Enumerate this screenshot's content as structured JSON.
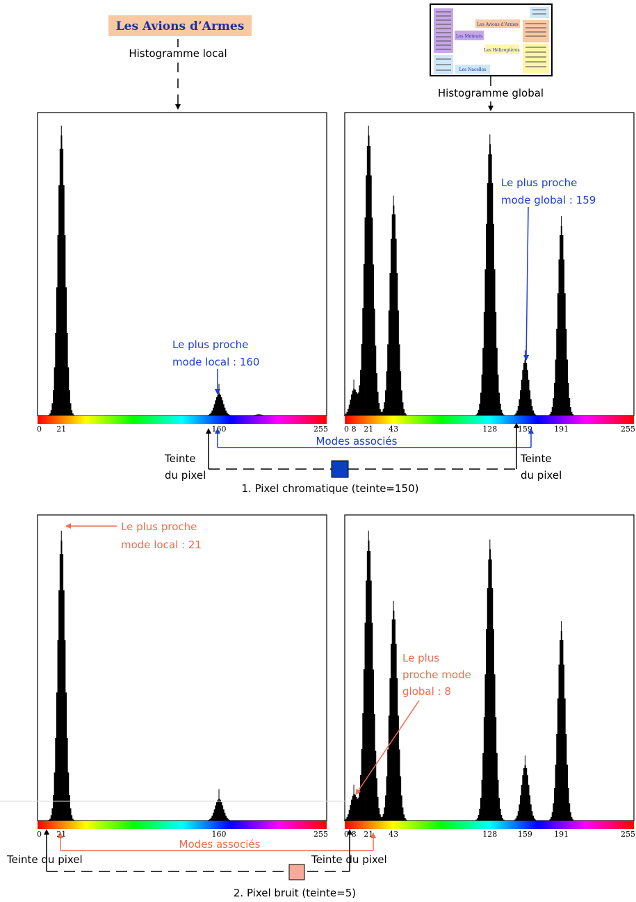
{
  "title_box": "Les Avions d’Armes",
  "labels": {
    "local_histogram": "Histogramme local",
    "global_histogram": "Histogramme global"
  },
  "thumbnail": {
    "items": [
      "Les Avions d’Armes",
      "Les Moteurs",
      "Les Hélicoptères",
      "Les Nacelles"
    ]
  },
  "colors": {
    "blue": "#1a3fd6",
    "salmon": "#f26a4f",
    "title_bg": "#f9c9a4",
    "title_text": "#1a2fa0",
    "pixel_chromatic": "#0a3fc0",
    "pixel_noise": "#f7a99a"
  },
  "panel1": {
    "local": {
      "ticks": [
        0,
        21,
        160,
        255
      ],
      "modes": [
        {
          "center": 21,
          "height": 0.96,
          "sigma": 3.2
        },
        {
          "center": 160,
          "height": 0.075,
          "sigma": 3.5
        },
        {
          "center": 195,
          "height": 0.004,
          "sigma": 3
        }
      ],
      "annotation": [
        "Le plus proche",
        "mode local : 160"
      ]
    },
    "global": {
      "ticks": [
        0,
        8,
        21,
        43,
        128,
        159,
        191,
        255
      ],
      "modes": [
        {
          "center": 8,
          "height": 0.09,
          "sigma": 3
        },
        {
          "center": 21,
          "height": 0.96,
          "sigma": 3.6
        },
        {
          "center": 43,
          "height": 0.72,
          "sigma": 3.4
        },
        {
          "center": 128,
          "height": 0.93,
          "sigma": 3.6
        },
        {
          "center": 159,
          "height": 0.19,
          "sigma": 3.2
        },
        {
          "center": 191,
          "height": 0.65,
          "sigma": 3.2
        }
      ],
      "annotation": [
        "Le plus proche",
        "mode global : 159"
      ]
    },
    "modes_associes": "Modes associés",
    "teinte_left": [
      "Teinte",
      "du pixel"
    ],
    "teinte_right": [
      "Teinte",
      "du pixel"
    ],
    "caption": "1.  Pixel chromatique (teinte=150)"
  },
  "panel2": {
    "local": {
      "ticks": [
        0,
        21,
        160,
        255
      ],
      "modes": [
        {
          "center": 21,
          "height": 0.96,
          "sigma": 3.2
        },
        {
          "center": 160,
          "height": 0.075,
          "sigma": 3.5
        }
      ],
      "annotation": [
        "Le plus proche",
        "mode local : 21"
      ]
    },
    "global": {
      "ticks": [
        0,
        8,
        21,
        43,
        128,
        159,
        191,
        255
      ],
      "modes": [
        {
          "center": 8,
          "height": 0.09,
          "sigma": 3
        },
        {
          "center": 21,
          "height": 0.96,
          "sigma": 3.6
        },
        {
          "center": 43,
          "height": 0.72,
          "sigma": 3.4
        },
        {
          "center": 128,
          "height": 0.93,
          "sigma": 3.6
        },
        {
          "center": 159,
          "height": 0.19,
          "sigma": 3.2
        },
        {
          "center": 191,
          "height": 0.65,
          "sigma": 3.2
        }
      ],
      "annotation": [
        "Le plus",
        "proche mode",
        "global : 8"
      ]
    },
    "modes_associes": "Modes associés",
    "teinte_left": "Teinte du pixel",
    "teinte_right": "Teinte du pixel",
    "caption": "2.  Pixel bruit (teinte=5)"
  }
}
